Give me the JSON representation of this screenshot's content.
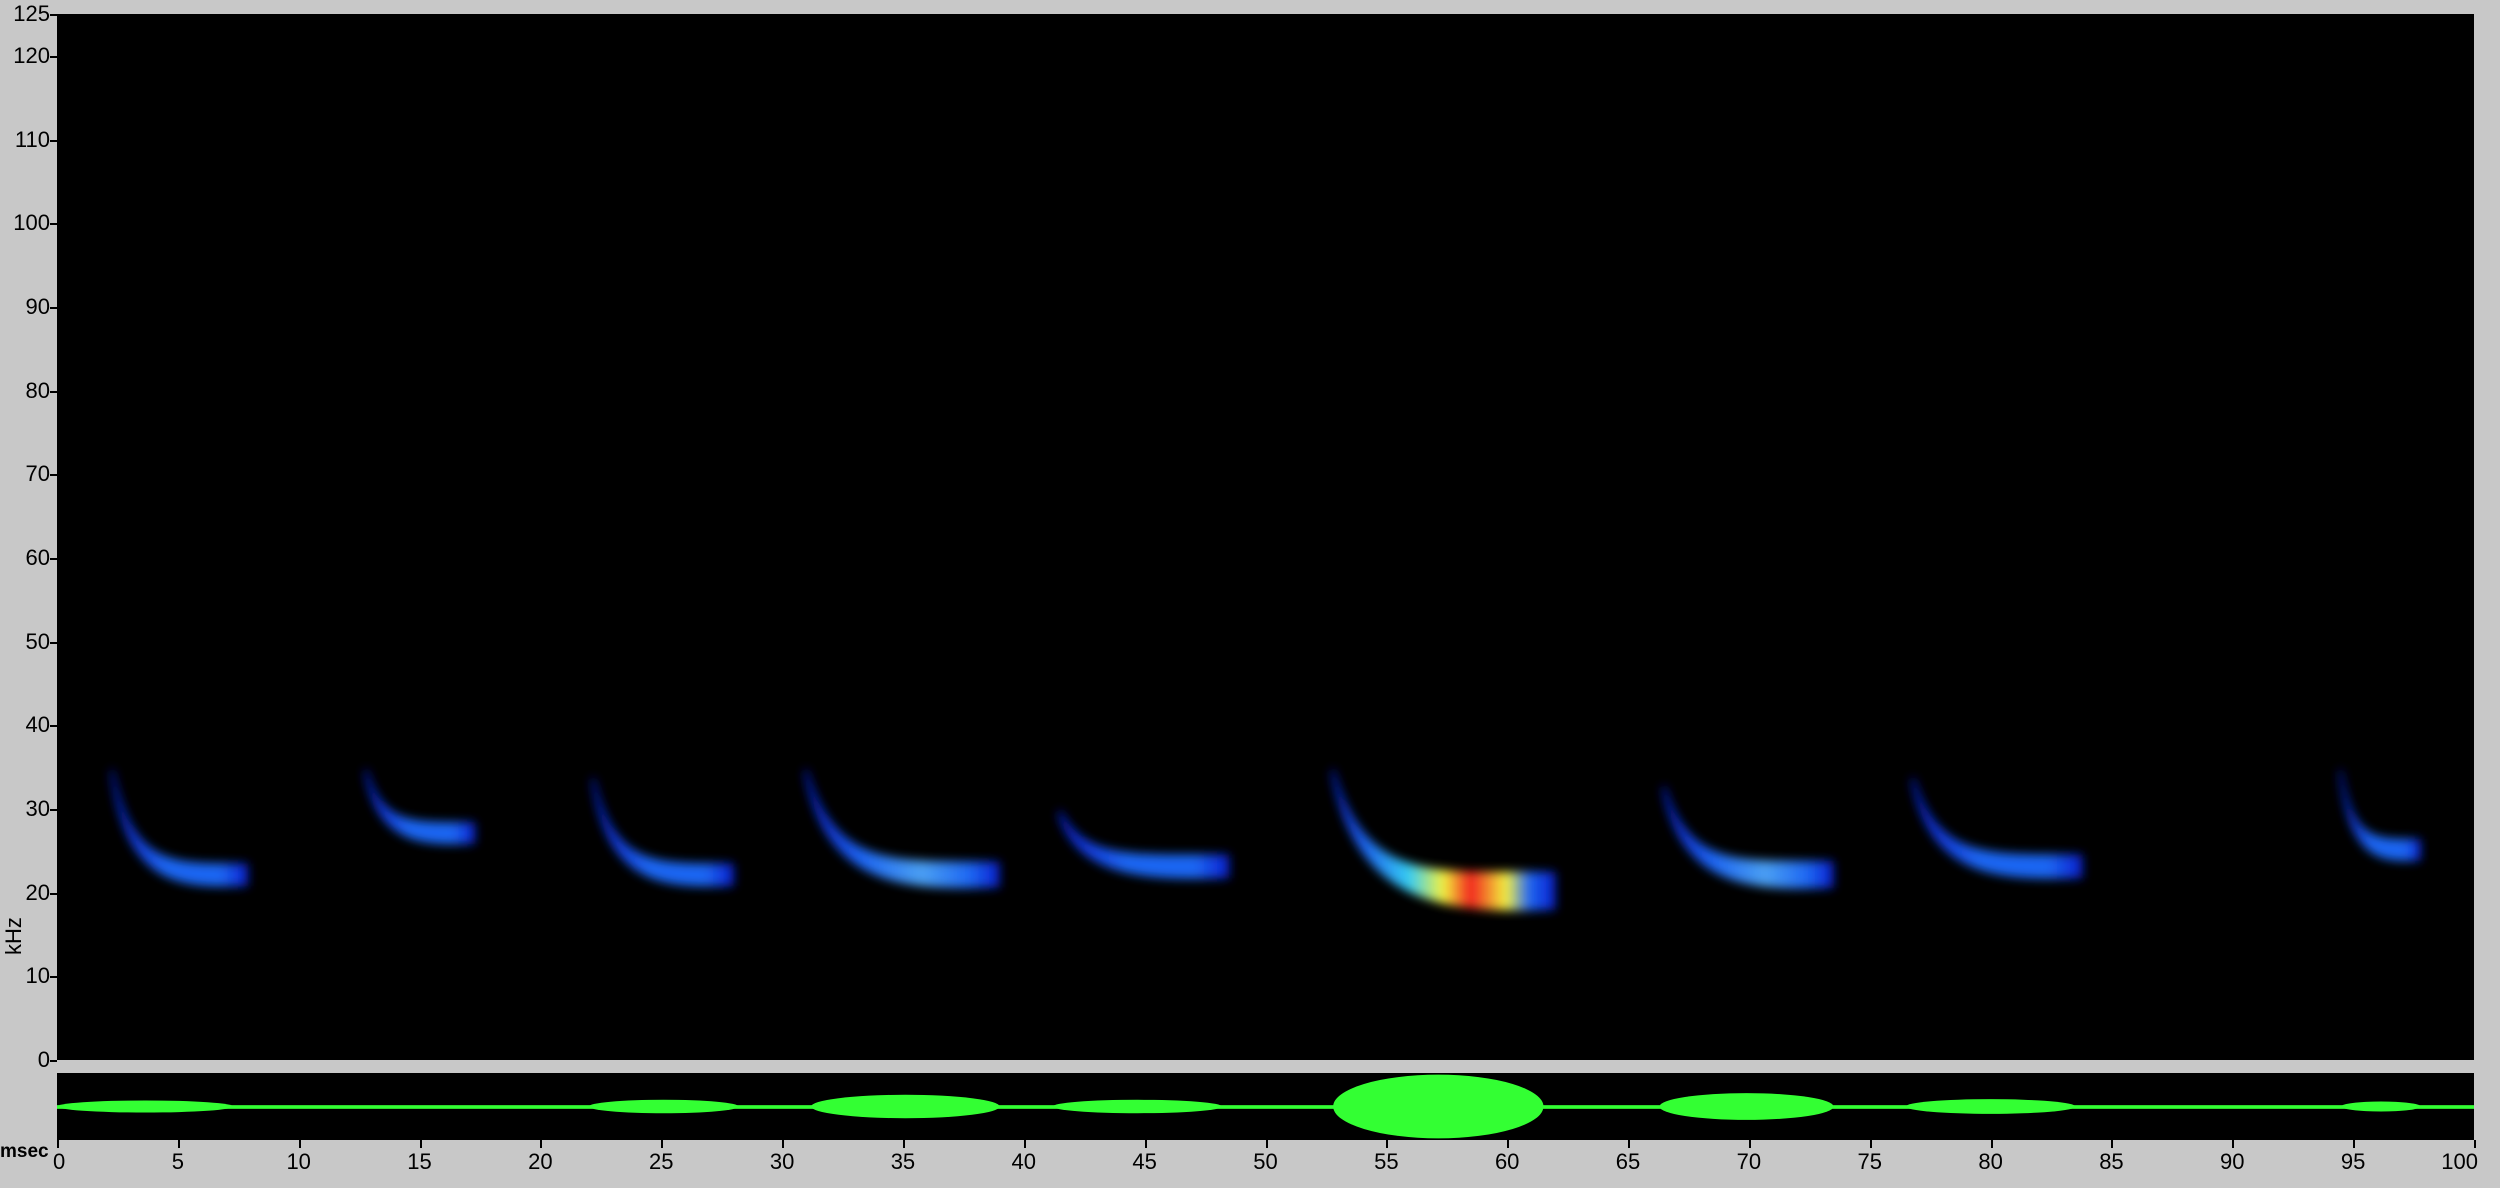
{
  "chart_data": [
    {
      "type": "heatmap",
      "title": "",
      "ylabel": "kHz",
      "xlabel": "",
      "ylim": [
        0,
        125
      ],
      "xlim": [
        0,
        100
      ],
      "y_ticks": [
        "0",
        "10",
        "20",
        "30",
        "40",
        "50",
        "60",
        "70",
        "80",
        "90",
        "100",
        "110",
        "120",
        "125"
      ],
      "x_ticks": [
        "0",
        "5",
        "10",
        "15",
        "20",
        "25",
        "30",
        "35",
        "40",
        "45",
        "50",
        "55",
        "60",
        "65",
        "70",
        "75",
        "80",
        "85",
        "90",
        "95",
        "100"
      ],
      "background": "#000000",
      "colormap": [
        "#0a1fd8",
        "#1f6cff",
        "#39d8ff",
        "#ffff40",
        "#ff2020"
      ],
      "calls": [
        {
          "t_start": 2.3,
          "t_end": 7.9,
          "f_start": 35,
          "f_end": 22,
          "intensity": 0.3
        },
        {
          "t_start": 12.8,
          "t_end": 17.3,
          "f_start": 35,
          "f_end": 27,
          "intensity": 0.25
        },
        {
          "t_start": 22.2,
          "t_end": 28.0,
          "f_start": 34,
          "f_end": 22,
          "intensity": 0.3
        },
        {
          "t_start": 31.0,
          "t_end": 39.0,
          "f_start": 35,
          "f_end": 22,
          "intensity": 0.45
        },
        {
          "t_start": 41.5,
          "t_end": 48.5,
          "f_start": 30,
          "f_end": 23,
          "intensity": 0.35
        },
        {
          "t_start": 52.8,
          "t_end": 62.0,
          "f_start": 35,
          "f_end": 20,
          "intensity": 1.0
        },
        {
          "t_start": 66.5,
          "t_end": 73.5,
          "f_start": 33,
          "f_end": 22,
          "intensity": 0.5
        },
        {
          "t_start": 76.8,
          "t_end": 83.8,
          "f_start": 34,
          "f_end": 23,
          "intensity": 0.35
        },
        {
          "t_start": 94.5,
          "t_end": 97.8,
          "f_start": 35,
          "f_end": 25,
          "intensity": 0.25
        }
      ]
    },
    {
      "type": "area",
      "title": "",
      "xlabel": "msec",
      "xlim": [
        0,
        100
      ],
      "color": "#33ff33",
      "envelope": [
        {
          "t_start": 0,
          "t_end": 7.3,
          "amp": 0.18
        },
        {
          "t_start": 22.0,
          "t_end": 28.2,
          "amp": 0.2
        },
        {
          "t_start": 31.2,
          "t_end": 39.0,
          "amp": 0.35
        },
        {
          "t_start": 41.2,
          "t_end": 48.2,
          "amp": 0.2
        },
        {
          "t_start": 52.8,
          "t_end": 61.5,
          "amp": 0.95
        },
        {
          "t_start": 66.3,
          "t_end": 73.5,
          "amp": 0.4
        },
        {
          "t_start": 76.5,
          "t_end": 83.5,
          "amp": 0.22
        },
        {
          "t_start": 94.5,
          "t_end": 97.8,
          "amp": 0.15
        }
      ],
      "baseline_amp": 0.04
    }
  ]
}
